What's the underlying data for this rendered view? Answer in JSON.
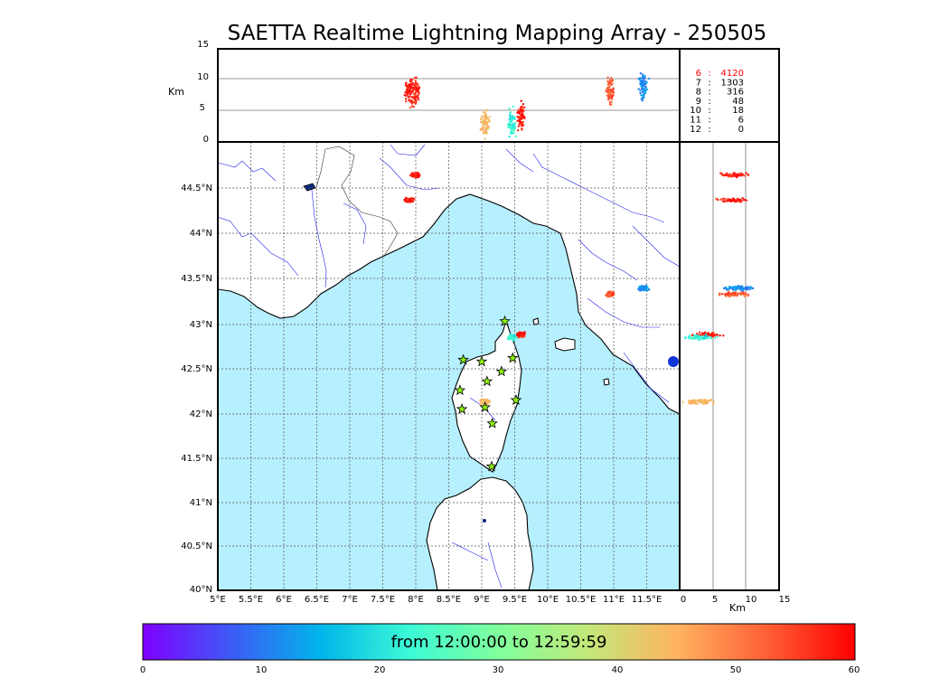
{
  "title": "SAETTA Realtime Lightning Mapping Array - 250505",
  "altitude_panel": {
    "unit_label": "Km",
    "ticks": [
      "0",
      "5",
      "10",
      "15"
    ]
  },
  "counts_table": [
    {
      "level": "6",
      "sep": ":",
      "count": "4120",
      "color": "#ff0000"
    },
    {
      "level": "7",
      "sep": ":",
      "count": "1303",
      "color": "#000000"
    },
    {
      "level": "8",
      "sep": ":",
      "count": "316",
      "color": "#000000"
    },
    {
      "level": "9",
      "sep": ":",
      "count": "48",
      "color": "#000000"
    },
    {
      "level": "10",
      "sep": ":",
      "count": "18",
      "color": "#000000"
    },
    {
      "level": "11",
      "sep": ":",
      "count": "6",
      "color": "#000000"
    },
    {
      "level": "12",
      "sep": ":",
      "count": "0",
      "color": "#000000"
    }
  ],
  "map": {
    "lon_ticks": [
      "5°E",
      "5.5°E",
      "6°E",
      "6.5°E",
      "7°E",
      "7.5°E",
      "8°E",
      "8.5°E",
      "9°E",
      "9.5°E",
      "10°E",
      "10.5°E",
      "11°E",
      "11.5°E"
    ],
    "lat_ticks": [
      "44.5°N",
      "44°N",
      "43.5°N",
      "43°N",
      "42.5°N",
      "42°N",
      "41.5°N",
      "41°N",
      "40.5°N",
      "40°N"
    ],
    "sea_color": "#b6effd",
    "land_color": "#ffffff"
  },
  "side_panel": {
    "unit_label": "Km",
    "ticks": [
      "0",
      "5",
      "10",
      "15"
    ]
  },
  "colorbar": {
    "caption": "from 12:00:00 to 12:59:59",
    "ticks": [
      "0",
      "10",
      "20",
      "30",
      "40",
      "50",
      "60"
    ],
    "colors": [
      "#7f00ff",
      "#3d5bf5",
      "#00b5eb",
      "#3cfad6",
      "#80ff9c",
      "#c3e87a",
      "#ffb360",
      "#ff6136",
      "#ff0000"
    ]
  },
  "chart_data": {
    "type": "scatter",
    "title": "SAETTA Realtime Lightning Mapping Array - 250505",
    "x_range": [
      5,
      12
    ],
    "y_range": [
      40,
      45
    ],
    "altitude_range_km": [
      0,
      15
    ],
    "time_color_range_min": [
      0,
      60
    ],
    "clusters": [
      {
        "lon": 7.9,
        "lat": 44.35,
        "alt_km": 8,
        "time_min": 58
      },
      {
        "lon": 8.0,
        "lat": 44.63,
        "alt_km": 8,
        "time_min": 57
      },
      {
        "lon": 10.95,
        "lat": 43.3,
        "alt_km": 8,
        "time_min": 53
      },
      {
        "lon": 11.45,
        "lat": 43.37,
        "alt_km": 9,
        "time_min": 12
      },
      {
        "lon": 9.6,
        "lat": 42.85,
        "alt_km": 4,
        "time_min": 58
      },
      {
        "lon": 9.45,
        "lat": 42.82,
        "alt_km": 3,
        "time_min": 22
      },
      {
        "lon": 9.05,
        "lat": 42.1,
        "alt_km": 3,
        "time_min": 45
      }
    ],
    "stations": [
      {
        "lon": 9.35,
        "lat": 43.0
      },
      {
        "lon": 8.72,
        "lat": 42.57
      },
      {
        "lon": 9.0,
        "lat": 42.55
      },
      {
        "lon": 9.47,
        "lat": 42.59
      },
      {
        "lon": 9.3,
        "lat": 42.44
      },
      {
        "lon": 9.08,
        "lat": 42.33
      },
      {
        "lon": 8.67,
        "lat": 42.23
      },
      {
        "lon": 9.52,
        "lat": 42.12
      },
      {
        "lon": 8.7,
        "lat": 42.02
      },
      {
        "lon": 9.05,
        "lat": 42.04
      },
      {
        "lon": 9.16,
        "lat": 41.86
      },
      {
        "lon": 9.15,
        "lat": 41.38
      }
    ]
  }
}
